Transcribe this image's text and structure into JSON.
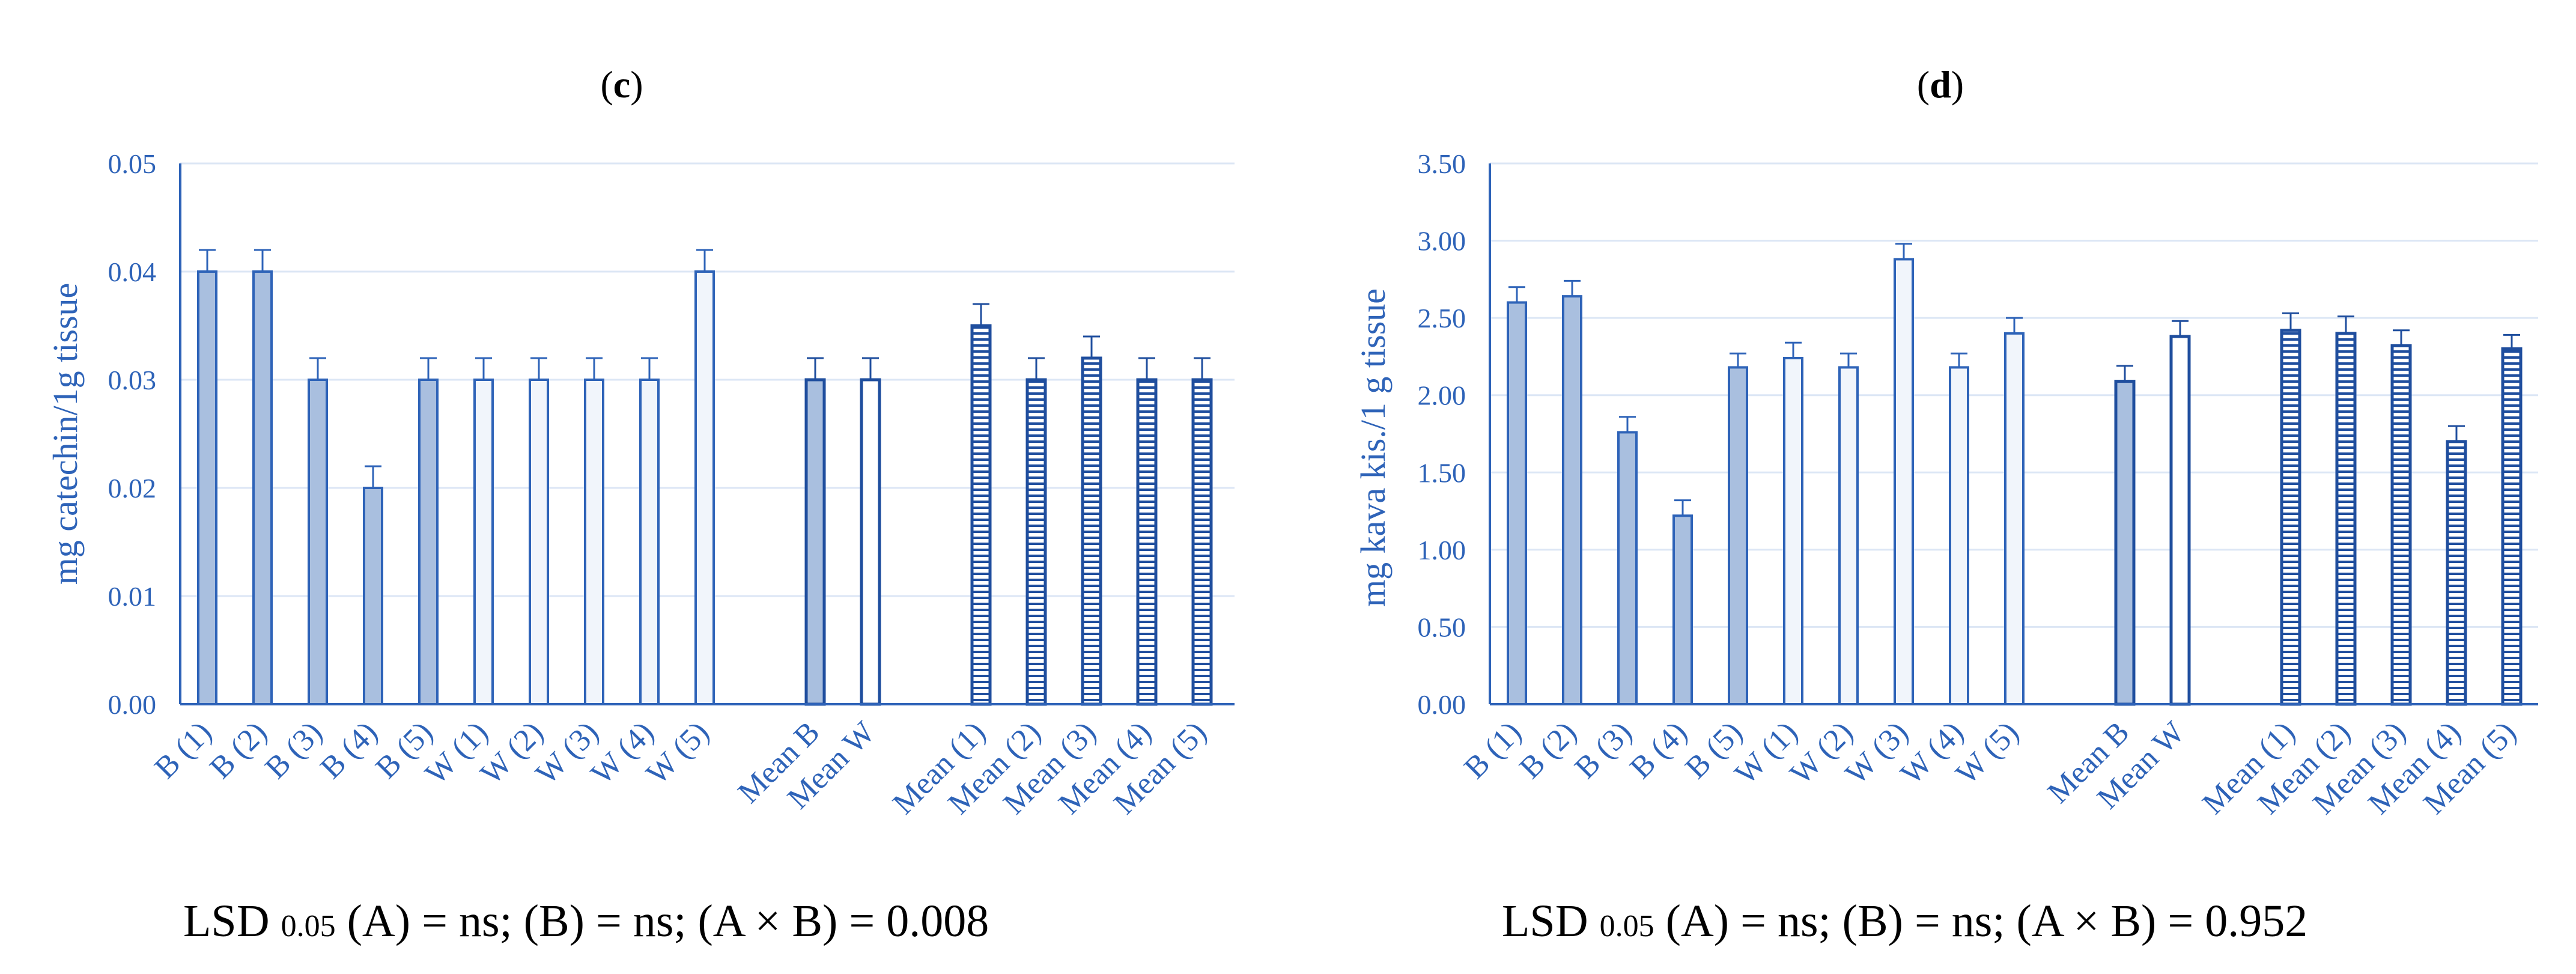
{
  "colors": {
    "axis": "#2E63B8",
    "grid": "#DCE6F5",
    "b_fill": "#A9BFDF",
    "b_stroke": "#2E63B8",
    "w_fill": "#F1F5FB",
    "mean_b_fill": "#A9BFDF",
    "mean_w_fill": "#FFFFFF",
    "mean_stroke": "#1F4E9E",
    "text": "#2E63B8"
  },
  "chart_data": [
    {
      "panel": "c",
      "type": "bar",
      "ylabel": "mg catechin/1g tissue",
      "ylim": [
        0,
        0.05
      ],
      "yticks": [
        "0.00",
        "0.01",
        "0.02",
        "0.03",
        "0.04",
        "0.05"
      ],
      "categories": [
        "B (1)",
        "B (2)",
        "B (3)",
        "B (4)",
        "B (5)",
        "W (1)",
        "W (2)",
        "W (3)",
        "W (4)",
        "W (5)",
        "Mean B",
        "Mean W",
        "Mean (1)",
        "Mean (2)",
        "Mean (3)",
        "Mean (4)",
        "Mean (5)"
      ],
      "groups": [
        "B",
        "B",
        "B",
        "B",
        "B",
        "W",
        "W",
        "W",
        "W",
        "W",
        "meanB",
        "meanW",
        "mean",
        "mean",
        "mean",
        "mean",
        "mean"
      ],
      "values": [
        0.04,
        0.04,
        0.03,
        0.02,
        0.03,
        0.03,
        0.03,
        0.03,
        0.03,
        0.04,
        0.03,
        0.03,
        0.035,
        0.03,
        0.032,
        0.03,
        0.03
      ],
      "errors": [
        0.002,
        0.002,
        0.002,
        0.002,
        0.002,
        0.002,
        0.002,
        0.002,
        0.002,
        0.002,
        0.002,
        0.002,
        0.002,
        0.002,
        0.002,
        0.002,
        0.002
      ],
      "lsd_text": "LSD ",
      "lsd_sub": "0.05",
      "lsd_rest": " (A) = ns; (B) = ns; (A × B) = 0.008"
    },
    {
      "panel": "d",
      "type": "bar",
      "ylabel": "mg kava kis./1 g tissue",
      "ylim": [
        0,
        3.5
      ],
      "yticks": [
        "0.00",
        "0.50",
        "1.00",
        "1.50",
        "2.00",
        "2.50",
        "3.00",
        "3.50"
      ],
      "categories": [
        "B (1)",
        "B (2)",
        "B (3)",
        "B (4)",
        "B (5)",
        "W (1)",
        "W (2)",
        "W (3)",
        "W (4)",
        "W (5)",
        "Mean B",
        "Mean W",
        "Mean (1)",
        "Mean (2)",
        "Mean (3)",
        "Mean (4)",
        "Mean (5)"
      ],
      "groups": [
        "B",
        "B",
        "B",
        "B",
        "B",
        "W",
        "W",
        "W",
        "W",
        "W",
        "meanB",
        "meanW",
        "mean",
        "mean",
        "mean",
        "mean",
        "mean"
      ],
      "values": [
        2.6,
        2.64,
        1.76,
        1.22,
        2.18,
        2.24,
        2.18,
        2.88,
        2.18,
        2.4,
        2.09,
        2.38,
        2.42,
        2.4,
        2.32,
        1.7,
        2.3
      ],
      "errors": [
        0.1,
        0.1,
        0.1,
        0.1,
        0.09,
        0.1,
        0.09,
        0.1,
        0.09,
        0.1,
        0.1,
        0.1,
        0.11,
        0.11,
        0.1,
        0.1,
        0.09
      ],
      "lsd_text": "LSD ",
      "lsd_sub": "0.05",
      "lsd_rest": " (A) = ns; (B) = ns; (A × B) = 0.952"
    }
  ],
  "panels": {
    "c": {
      "open": "(",
      "letter": "c",
      "close": ")"
    },
    "d": {
      "open": "(",
      "letter": "d",
      "close": ")"
    }
  }
}
